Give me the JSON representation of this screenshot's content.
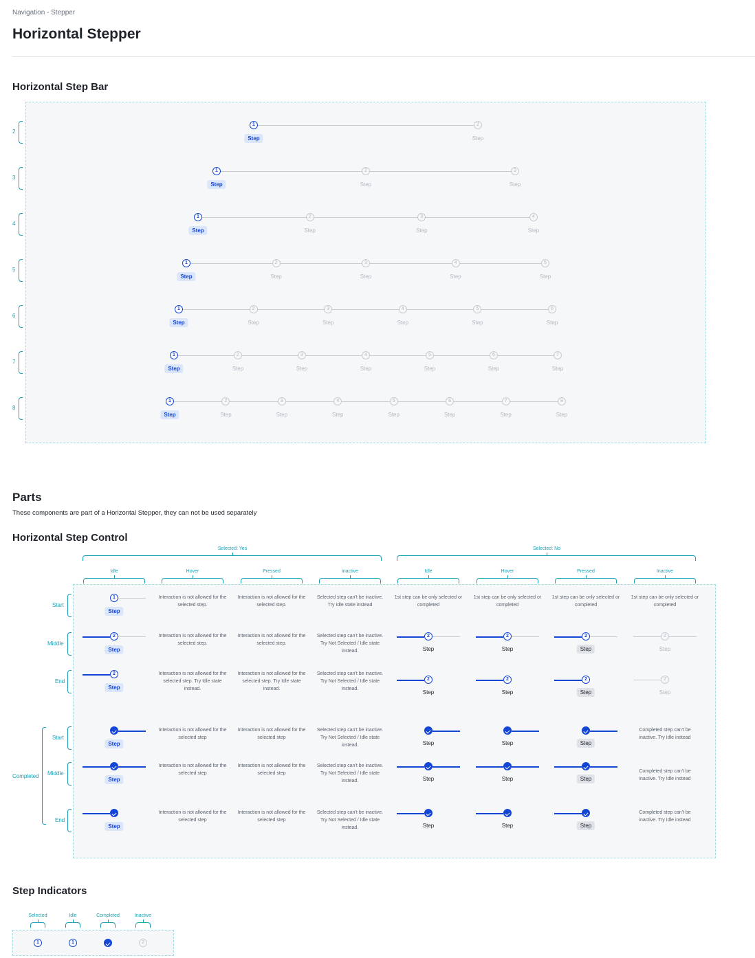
{
  "breadcrumb": "Navigation - Stepper",
  "page_title": "Horizontal Stepper",
  "section_bar": "Horizontal Step Bar",
  "step_label": "Step",
  "bar_rows": [
    2,
    3,
    4,
    5,
    6,
    7,
    8
  ],
  "section_parts": "Parts",
  "parts_desc": "These components are part of a Horizontal Stepper, they can not be used separately",
  "section_control": "Horizontal Step Control",
  "control": {
    "selected_yes": "Selected: Yes",
    "selected_no": "Selected: No",
    "columns": [
      "Idle",
      "Hover",
      "Pressed",
      "Inactive",
      "Idle",
      "Hover",
      "Pressed",
      "Inactive"
    ],
    "rows": [
      "Start",
      "Middle",
      "End"
    ],
    "completed_group": "Completed",
    "notes": {
      "not_allowed": "Interaction is not allowed for the selected step.",
      "not_allowed_try": "Interaction is not allowed for the selected step. Try Idle state instead.",
      "not_allowed_short": "Interaction is not allowed for the selected step",
      "cant_inactive_idle": "Selected step can't be inactive. Try Idle state instead",
      "cant_inactive_ns": "Selected step can't be inactive. Try Not Selected / Idle state instead.",
      "first_step": "1st step can be only selected or completed",
      "completed_cant": "Completed step can't be inactive. Try Idle instead"
    }
  },
  "section_indicators": "Step Indicators",
  "indicators": [
    "Selected",
    "Idle",
    "Completed",
    "Inactive"
  ],
  "colors": {
    "accent": "#1446d6",
    "annotation": "#1aa0b4",
    "inactive": "#c8ccd2"
  }
}
